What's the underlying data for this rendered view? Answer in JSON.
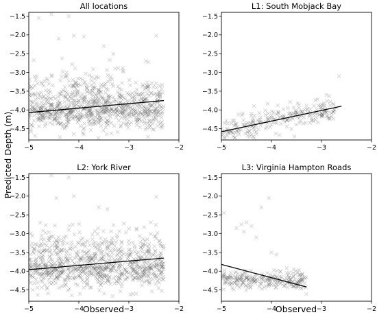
{
  "figure": {
    "ylabel": "Predicted Depth (m)",
    "xlabel_bottom_left": "Observed",
    "xlabel_bottom_right": "Observed"
  },
  "chart_data": [
    {
      "type": "scatter",
      "title": "All locations",
      "xlim": [
        -5,
        -2
      ],
      "ylim": [
        -4.8,
        -1.4
      ],
      "xticks": [
        -5,
        -4,
        -3,
        -2
      ],
      "yticks": [
        -1.5,
        -2.0,
        -2.5,
        -3.0,
        -3.5,
        -4.0,
        -4.5
      ],
      "tick_labels_x": [
        "−5",
        "−4",
        "−3",
        "−2"
      ],
      "tick_labels_y": [
        "−1.5",
        "−2.0",
        "−2.5",
        "−3.0",
        "−3.5",
        "−4.0",
        "−4.5"
      ],
      "marker": "x",
      "marker_color": "#555555",
      "fit_line": {
        "x": [
          -5.0,
          -2.3
        ],
        "y": [
          -4.07,
          -3.75
        ]
      },
      "cluster": {
        "x_range": [
          -5.0,
          -2.3
        ],
        "y_center": -3.95,
        "n": 900
      },
      "outliers": [
        {
          "x": -4.55,
          "y": -1.45
        },
        {
          "x": -4.2,
          "y": -1.5
        },
        {
          "x": -4.1,
          "y": -2.02
        },
        {
          "x": -3.9,
          "y": -2.05
        },
        {
          "x": -2.45,
          "y": -2.02
        },
        {
          "x": -4.8,
          "y": -1.55
        },
        {
          "x": -3.5,
          "y": -2.3
        },
        {
          "x": -4.4,
          "y": -2.1
        }
      ]
    },
    {
      "type": "scatter",
      "title": "L1: South Mobjack Bay",
      "xlim": [
        -5,
        -2
      ],
      "ylim": [
        -4.8,
        -1.4
      ],
      "xticks": [
        -5,
        -4,
        -3,
        -2
      ],
      "yticks": [
        -1.5,
        -2.0,
        -2.5,
        -3.0,
        -3.5,
        -4.0,
        -4.5
      ],
      "tick_labels_x": [
        "−5",
        "−4",
        "−3",
        "−2"
      ],
      "tick_labels_y": [
        "−1.5",
        "−2.0",
        "−2.5",
        "−3.0",
        "−3.5",
        "−4.0",
        "−4.5"
      ],
      "marker": "x",
      "marker_color": "#555555",
      "fit_line": {
        "x": [
          -5.0,
          -2.6
        ],
        "y": [
          -4.58,
          -3.9
        ]
      },
      "cluster": {
        "x_range": [
          -5.0,
          -2.7
        ],
        "slope": 0.28,
        "intercept": -3.18,
        "spread": 0.17,
        "n": 260
      },
      "outliers": [
        {
          "x": -2.65,
          "y": -3.1
        },
        {
          "x": -2.9,
          "y": -3.6
        }
      ]
    },
    {
      "type": "scatter",
      "title": "L2: York River",
      "xlim": [
        -5,
        -2
      ],
      "ylim": [
        -4.8,
        -1.4
      ],
      "xticks": [
        -5,
        -4,
        -3,
        -2
      ],
      "yticks": [
        -1.5,
        -2.0,
        -2.5,
        -3.0,
        -3.5,
        -4.0,
        -4.5
      ],
      "tick_labels_x": [
        "−5",
        "−4",
        "−3",
        "−2"
      ],
      "tick_labels_y": [
        "−1.5",
        "−2.0",
        "−2.5",
        "−3.0",
        "−3.5",
        "−4.0",
        "−4.5"
      ],
      "marker": "x",
      "marker_color": "#555555",
      "fit_line": {
        "x": [
          -5.0,
          -2.3
        ],
        "y": [
          -3.96,
          -3.65
        ]
      },
      "cluster": {
        "x_range": [
          -5.0,
          -2.3
        ],
        "y_center": -3.85,
        "n": 900
      },
      "outliers": [
        {
          "x": -4.55,
          "y": -1.45
        },
        {
          "x": -4.2,
          "y": -1.5
        },
        {
          "x": -4.1,
          "y": -2.0
        },
        {
          "x": -2.45,
          "y": -2.02
        },
        {
          "x": -4.45,
          "y": -2.05
        },
        {
          "x": -3.6,
          "y": -2.3
        }
      ]
    },
    {
      "type": "scatter",
      "title": "L3: Virginia Hampton Roads",
      "xlim": [
        -5,
        -2
      ],
      "ylim": [
        -4.8,
        -1.4
      ],
      "xticks": [
        -5,
        -4,
        -3,
        -2
      ],
      "yticks": [
        -1.5,
        -2.0,
        -2.5,
        -3.0,
        -3.5,
        -4.0,
        -4.5
      ],
      "tick_labels_x": [
        "−5",
        "−4",
        "−3",
        "−2"
      ],
      "tick_labels_y": [
        "−1.5",
        "−2.0",
        "−2.5",
        "−3.0",
        "−3.5",
        "−4.0",
        "−4.5"
      ],
      "marker": "x",
      "marker_color": "#555555",
      "fit_line": {
        "x": [
          -5.0,
          -3.3
        ],
        "y": [
          -3.82,
          -4.42
        ]
      },
      "cluster": {
        "x_range": [
          -5.0,
          -3.3
        ],
        "y_center": -4.22,
        "n": 260
      },
      "outliers": [
        {
          "x": -4.95,
          "y": -2.45
        },
        {
          "x": -4.7,
          "y": -2.85
        },
        {
          "x": -4.6,
          "y": -2.75
        },
        {
          "x": -4.55,
          "y": -2.95
        },
        {
          "x": -4.5,
          "y": -2.7
        },
        {
          "x": -4.4,
          "y": -2.8
        },
        {
          "x": -4.2,
          "y": -2.3
        },
        {
          "x": -4.05,
          "y": -2.05
        },
        {
          "x": -4.3,
          "y": -3.1
        },
        {
          "x": -3.9,
          "y": -3.55
        },
        {
          "x": -4.0,
          "y": -3.5
        }
      ]
    }
  ]
}
